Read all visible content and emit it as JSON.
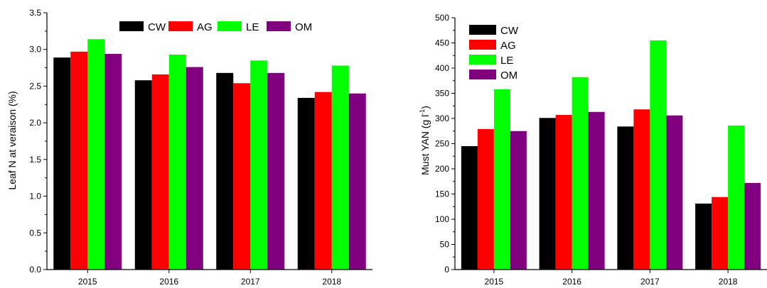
{
  "colors": {
    "CW": "#000000",
    "AG": "#ff0000",
    "LE": "#00ff00",
    "OM": "#800080"
  },
  "chart_data": [
    {
      "type": "bar",
      "categories": [
        "2015",
        "2016",
        "2017",
        "2018"
      ],
      "series": [
        {
          "name": "CW",
          "values": [
            2.89,
            2.58,
            2.68,
            2.34
          ]
        },
        {
          "name": "AG",
          "values": [
            2.97,
            2.66,
            2.54,
            2.42
          ]
        },
        {
          "name": "LE",
          "values": [
            3.14,
            2.93,
            2.85,
            2.78
          ]
        },
        {
          "name": "OM",
          "values": [
            2.94,
            2.76,
            2.68,
            2.4
          ]
        }
      ],
      "ylabel": "Leaf N at veraison (%)",
      "ylim": [
        0,
        3.5
      ],
      "yticks": [
        "0.0",
        "0.5",
        "1.0",
        "1.5",
        "2.0",
        "2.5",
        "3.0",
        "3.5"
      ],
      "grid": false,
      "legend": "top, horizontal"
    },
    {
      "type": "bar",
      "categories": [
        "2015",
        "2016",
        "2017",
        "2018"
      ],
      "series": [
        {
          "name": "CW",
          "values": [
            245,
            301,
            284,
            131
          ]
        },
        {
          "name": "AG",
          "values": [
            279,
            307,
            318,
            144
          ]
        },
        {
          "name": "LE",
          "values": [
            358,
            382,
            455,
            286
          ]
        },
        {
          "name": "OM",
          "values": [
            275,
            313,
            306,
            172
          ]
        }
      ],
      "ylabel_main": "Must YAN (g l",
      "ylabel_sup": "-1",
      "ylabel_close": ")",
      "ylim": [
        0,
        500
      ],
      "yticks": [
        "0",
        "50",
        "100",
        "150",
        "200",
        "250",
        "300",
        "350",
        "400",
        "450",
        "500"
      ],
      "grid": false,
      "legend": "top-left, vertical"
    }
  ]
}
